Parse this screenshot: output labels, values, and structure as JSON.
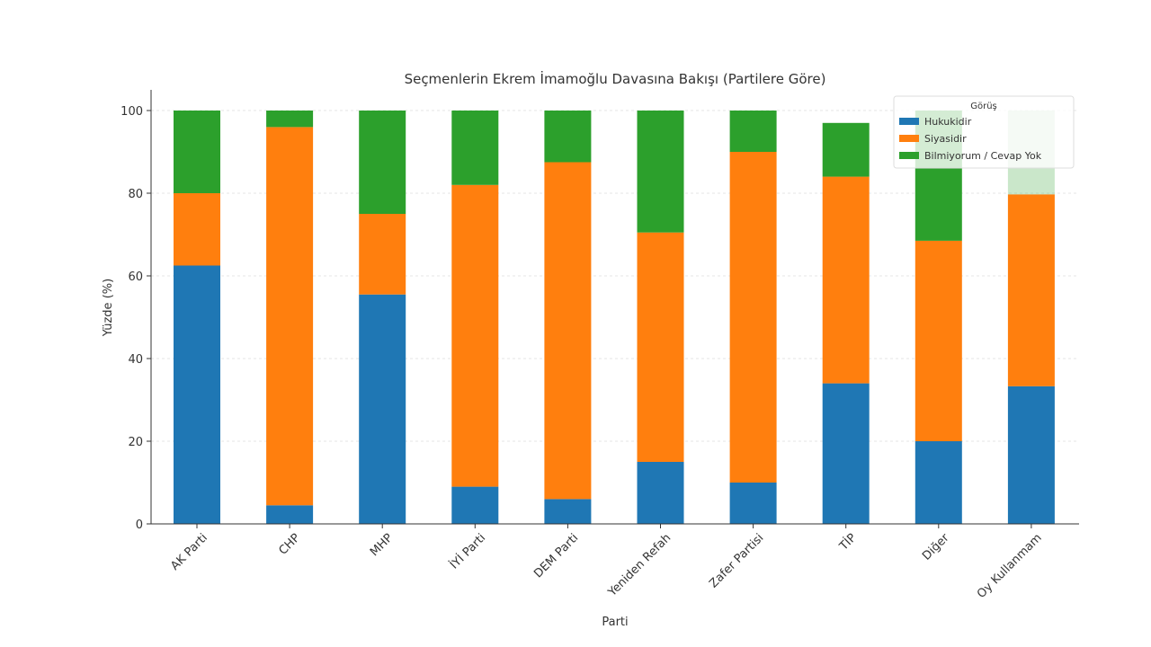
{
  "chart_data": {
    "type": "bar",
    "stacked": true,
    "title": "Seçmenlerin Ekrem İmamoğlu Davasına Bakışı (Partilere Göre)",
    "xlabel": "Parti",
    "ylabel": "Yüzde (%)",
    "ylim": [
      0,
      105
    ],
    "yticks": [
      0,
      20,
      40,
      60,
      80,
      100
    ],
    "grid": true,
    "legend_title": "Görüş",
    "legend_position": "top-right",
    "categories": [
      "AK Parti",
      "CHP",
      "MHP",
      "İYİ Parti",
      "DEM Parti",
      "Yeniden Refah",
      "Zafer Partisi",
      "TİP",
      "Diğer",
      "Oy Kullanmam"
    ],
    "series": [
      {
        "name": "Hukukidir",
        "color": "#1f77b4",
        "values": [
          62.5,
          4.5,
          55.5,
          9,
          6,
          15,
          10,
          34,
          20,
          33.3
        ]
      },
      {
        "name": "Siyasidir",
        "color": "#ff7f0e",
        "values": [
          17.5,
          91.5,
          19.5,
          73,
          81.5,
          55.5,
          80,
          50,
          48.5,
          46.4
        ]
      },
      {
        "name": "Bilmiyorum / Cevap Yok",
        "color": "#2ca02c",
        "values": [
          20,
          4,
          25,
          18,
          12.5,
          29.5,
          10,
          13,
          31.5,
          20.3
        ]
      }
    ]
  }
}
